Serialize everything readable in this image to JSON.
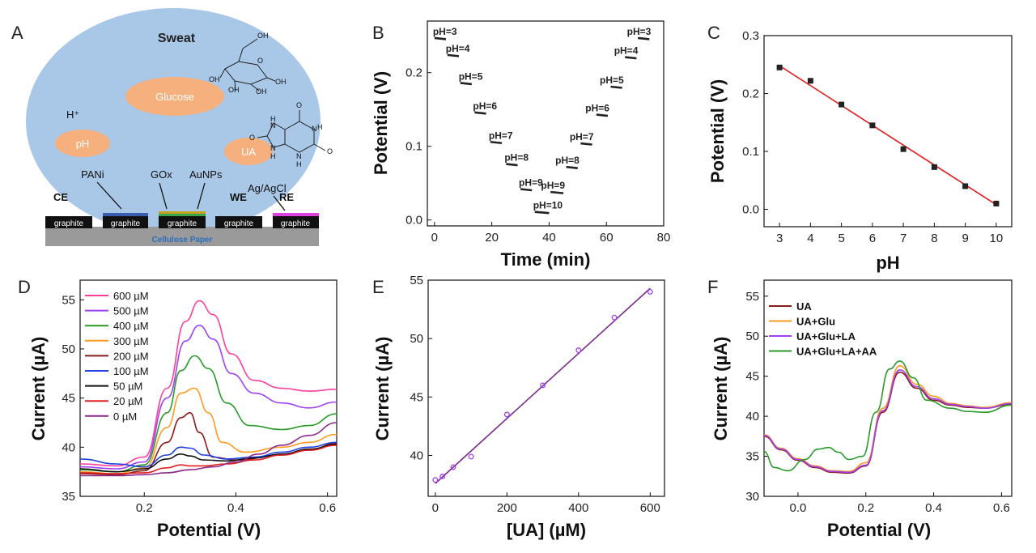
{
  "panel_labels": [
    "A",
    "B",
    "C",
    "D",
    "E",
    "F"
  ],
  "schematic": {
    "title": "Sweat",
    "analytes": [
      "Glucose",
      "pH",
      "UA"
    ],
    "proton": "H⁺",
    "annotations": [
      "PANi",
      "GOx",
      "AuNPs",
      "Ag/AgCl"
    ],
    "electrode_labels": [
      "CE",
      "WE",
      "RE"
    ],
    "electrode_text": "graphite",
    "substrate": "Cellulose Paper",
    "molecule_atoms": {
      "oh": "OH",
      "o": "O",
      "h": "H",
      "n": "N"
    },
    "colors": {
      "sweat": "#a9c8e8",
      "analyte": "#f5b07e",
      "substrate": "#9a9a9a",
      "substrate_text": "#2a6fc0",
      "electrode": "#111111",
      "pani": "#3a5fb0",
      "aunp": "#c9a020",
      "gox": "#3aa64a",
      "agcl": "#e040e0"
    }
  },
  "chart_data": [
    {
      "id": "B",
      "type": "line",
      "title": "",
      "xlabel": "Time (min)",
      "ylabel": "Potential (V)",
      "xlim": [
        -2.5,
        80
      ],
      "ylim": [
        -0.008,
        0.27
      ],
      "xticks": [
        0,
        20,
        40,
        60,
        80
      ],
      "yticks": [
        0.0,
        0.1,
        0.2
      ],
      "ytick_labels": [
        "0.0",
        "0.1",
        "0.2"
      ],
      "segments": [
        {
          "label": "pH=3",
          "x": [
            0,
            4
          ],
          "y": 0.247
        },
        {
          "label": "pH=4",
          "x": [
            4.5,
            8.5
          ],
          "y": 0.224
        },
        {
          "label": "pH=5",
          "x": [
            9,
            13
          ],
          "y": 0.186
        },
        {
          "label": "pH=6",
          "x": [
            14,
            18
          ],
          "y": 0.146
        },
        {
          "label": "pH=7",
          "x": [
            19.5,
            23.5
          ],
          "y": 0.106
        },
        {
          "label": "pH=8",
          "x": [
            25,
            29
          ],
          "y": 0.076
        },
        {
          "label": "pH=9",
          "x": [
            30,
            34
          ],
          "y": 0.042
        },
        {
          "label": "pH=10",
          "x": [
            35,
            40
          ],
          "y": 0.011
        },
        {
          "label": "pH=9",
          "x": [
            40.5,
            45
          ],
          "y": 0.038
        },
        {
          "label": "pH=8",
          "x": [
            46,
            50
          ],
          "y": 0.072
        },
        {
          "label": "pH=7",
          "x": [
            51,
            55
          ],
          "y": 0.104
        },
        {
          "label": "pH=6",
          "x": [
            56.5,
            60.5
          ],
          "y": 0.143
        },
        {
          "label": "pH=5",
          "x": [
            61.5,
            65.5
          ],
          "y": 0.181
        },
        {
          "label": "pH=4",
          "x": [
            66.5,
            70.5
          ],
          "y": 0.221
        },
        {
          "label": "pH=3",
          "x": [
            71,
            75
          ],
          "y": 0.247
        }
      ]
    },
    {
      "id": "C",
      "type": "scatter",
      "title": "",
      "xlabel": "pH",
      "ylabel": "Potential (V)",
      "xlim": [
        2.5,
        10.5
      ],
      "ylim": [
        -0.03,
        0.3
      ],
      "xticks": [
        3,
        4,
        5,
        6,
        7,
        8,
        9,
        10
      ],
      "yticks": [
        0.0,
        0.1,
        0.2,
        0.3
      ],
      "ytick_labels": [
        "0.0",
        "0.1",
        "0.2",
        "0.3"
      ],
      "x": [
        3,
        4,
        5,
        6,
        7,
        8,
        9,
        10
      ],
      "y": [
        0.245,
        0.222,
        0.181,
        0.145,
        0.104,
        0.073,
        0.04,
        0.01
      ],
      "fit": {
        "x": [
          3,
          10
        ],
        "y": [
          0.248,
          0.008
        ]
      },
      "colors": {
        "points": "#222222",
        "fit": "#e02020"
      }
    },
    {
      "id": "D",
      "type": "line",
      "title": "",
      "xlabel": "Potential (V)",
      "ylabel": "Current (µA)",
      "xlim": [
        0.06,
        0.62
      ],
      "ylim": [
        35,
        57
      ],
      "xticks": [
        0.2,
        0.4,
        0.6
      ],
      "yticks": [
        35,
        40,
        45,
        50,
        55
      ],
      "legend_position": "top-left",
      "series": [
        {
          "name": "600 µM",
          "color": "#ff3d9a",
          "x": [
            0.06,
            0.14,
            0.2,
            0.25,
            0.29,
            0.32,
            0.35,
            0.39,
            0.44,
            0.5,
            0.56,
            0.62
          ],
          "y": [
            38.3,
            38.1,
            39.0,
            46.0,
            52.8,
            54.9,
            53.5,
            49.5,
            46.8,
            46.0,
            45.7,
            45.9
          ]
        },
        {
          "name": "500 µM",
          "color": "#a040f0",
          "x": [
            0.06,
            0.14,
            0.2,
            0.25,
            0.29,
            0.32,
            0.35,
            0.39,
            0.44,
            0.5,
            0.56,
            0.62
          ],
          "y": [
            38.0,
            37.8,
            38.5,
            45.0,
            50.8,
            52.4,
            51.0,
            47.5,
            45.5,
            44.5,
            44.0,
            44.6
          ]
        },
        {
          "name": "400 µM",
          "color": "#2a9a2a",
          "x": [
            0.06,
            0.14,
            0.2,
            0.25,
            0.28,
            0.31,
            0.34,
            0.38,
            0.43,
            0.5,
            0.56,
            0.62
          ],
          "y": [
            37.7,
            37.5,
            38.2,
            43.5,
            47.8,
            49.3,
            48.0,
            44.5,
            42.2,
            41.8,
            42.2,
            43.4
          ]
        },
        {
          "name": "300 µM",
          "color": "#ff9a20",
          "x": [
            0.06,
            0.14,
            0.2,
            0.25,
            0.28,
            0.31,
            0.34,
            0.37,
            0.42,
            0.5,
            0.56,
            0.62
          ],
          "y": [
            37.5,
            37.3,
            37.9,
            42.0,
            45.5,
            46.0,
            43.5,
            40.5,
            39.5,
            40.0,
            40.5,
            41.3
          ]
        },
        {
          "name": "200 µM",
          "color": "#8b1a1a",
          "x": [
            0.06,
            0.14,
            0.2,
            0.25,
            0.28,
            0.3,
            0.32,
            0.35,
            0.4,
            0.5,
            0.56,
            0.62
          ],
          "y": [
            37.3,
            37.2,
            37.6,
            40.5,
            43.0,
            43.5,
            41.5,
            39.0,
            38.7,
            39.2,
            39.7,
            40.4
          ]
        },
        {
          "name": "100 µM",
          "color": "#2040e0",
          "x": [
            0.06,
            0.14,
            0.2,
            0.25,
            0.28,
            0.3,
            0.33,
            0.38,
            0.44,
            0.5,
            0.56,
            0.62
          ],
          "y": [
            38.8,
            38.3,
            38.0,
            39.2,
            40.0,
            39.9,
            39.2,
            38.8,
            39.0,
            39.5,
            40.0,
            40.5
          ]
        },
        {
          "name": "50 µM",
          "color": "#111111",
          "x": [
            0.06,
            0.14,
            0.2,
            0.25,
            0.28,
            0.3,
            0.33,
            0.38,
            0.44,
            0.5,
            0.56,
            0.62
          ],
          "y": [
            37.8,
            37.5,
            37.8,
            38.8,
            39.3,
            39.1,
            38.7,
            38.6,
            38.9,
            39.3,
            39.8,
            40.3
          ]
        },
        {
          "name": "20 µM",
          "color": "#e02020",
          "x": [
            0.06,
            0.14,
            0.2,
            0.25,
            0.28,
            0.3,
            0.33,
            0.38,
            0.44,
            0.5,
            0.56,
            0.62
          ],
          "y": [
            37.4,
            37.3,
            37.4,
            37.9,
            38.2,
            38.1,
            38.1,
            38.3,
            38.7,
            39.2,
            39.7,
            40.2
          ]
        },
        {
          "name": "0 µM",
          "color": "#8b2a8b",
          "x": [
            0.06,
            0.14,
            0.2,
            0.25,
            0.3,
            0.35,
            0.4,
            0.45,
            0.5,
            0.56,
            0.62
          ],
          "y": [
            37.1,
            37.1,
            37.2,
            37.4,
            37.7,
            38.0,
            38.5,
            39.3,
            40.2,
            41.2,
            42.5
          ]
        }
      ]
    },
    {
      "id": "E",
      "type": "scatter",
      "title": "",
      "xlabel": "[UA] (µM)",
      "ylabel": "Current (µA)",
      "xlim": [
        -20,
        640
      ],
      "ylim": [
        36.5,
        55
      ],
      "xticks": [
        0,
        200,
        400,
        600
      ],
      "yticks": [
        40,
        45,
        50,
        55
      ],
      "x": [
        0,
        20,
        50,
        100,
        200,
        300,
        400,
        500,
        600
      ],
      "y": [
        37.9,
        38.2,
        39.0,
        39.9,
        43.5,
        46.0,
        49.0,
        51.8,
        54.0
      ],
      "fit": {
        "x": [
          0,
          600
        ],
        "y": [
          37.6,
          54.3
        ]
      },
      "colors": {
        "points": "#a040f0",
        "fit": "#7a2a8a"
      }
    },
    {
      "id": "F",
      "type": "line",
      "title": "",
      "xlabel": "Potential (V)",
      "ylabel": "Current (µA)",
      "xlim": [
        -0.1,
        0.63
      ],
      "ylim": [
        30,
        57
      ],
      "xticks": [
        0.0,
        0.2,
        0.4,
        0.6
      ],
      "xtick_labels": [
        "0.0",
        "0.2",
        "0.4",
        "0.6"
      ],
      "yticks": [
        30,
        35,
        40,
        45,
        50,
        55
      ],
      "legend_position": "top-left",
      "series": [
        {
          "name": "UA",
          "color": "#8b1a1a",
          "x": [
            -0.1,
            -0.05,
            0.0,
            0.05,
            0.1,
            0.15,
            0.2,
            0.25,
            0.3,
            0.35,
            0.4,
            0.45,
            0.5,
            0.55,
            0.63
          ],
          "y": [
            37.5,
            35.8,
            34.5,
            33.6,
            33.0,
            32.9,
            33.8,
            40.5,
            45.5,
            43.5,
            42.0,
            41.4,
            41.1,
            41.0,
            41.5
          ]
        },
        {
          "name": "UA+Glu",
          "color": "#ff9a20",
          "x": [
            -0.1,
            -0.05,
            0.0,
            0.05,
            0.1,
            0.15,
            0.2,
            0.25,
            0.3,
            0.35,
            0.4,
            0.45,
            0.5,
            0.55,
            0.63
          ],
          "y": [
            37.7,
            36.0,
            34.7,
            33.8,
            33.2,
            33.1,
            34.2,
            41.0,
            46.3,
            44.0,
            42.5,
            41.6,
            41.3,
            41.1,
            41.7
          ]
        },
        {
          "name": "UA+Glu+LA",
          "color": "#a040f0",
          "x": [
            -0.1,
            -0.05,
            0.0,
            0.05,
            0.1,
            0.15,
            0.2,
            0.25,
            0.3,
            0.35,
            0.4,
            0.45,
            0.5,
            0.55,
            0.63
          ],
          "y": [
            37.6,
            35.9,
            34.6,
            33.7,
            33.1,
            33.0,
            33.9,
            40.7,
            45.8,
            43.7,
            42.2,
            41.5,
            41.2,
            41.0,
            41.6
          ]
        },
        {
          "name": "UA+Glu+LA+AA",
          "color": "#2a9a2a",
          "x": [
            -0.1,
            -0.07,
            -0.03,
            0.02,
            0.06,
            0.09,
            0.12,
            0.15,
            0.19,
            0.23,
            0.27,
            0.3,
            0.34,
            0.38,
            0.45,
            0.5,
            0.55,
            0.63
          ],
          "y": [
            35.6,
            33.6,
            33.2,
            34.6,
            35.9,
            36.1,
            35.5,
            34.6,
            35.0,
            40.5,
            45.9,
            46.9,
            44.8,
            42.0,
            41.0,
            40.6,
            40.5,
            41.4
          ]
        }
      ]
    }
  ]
}
